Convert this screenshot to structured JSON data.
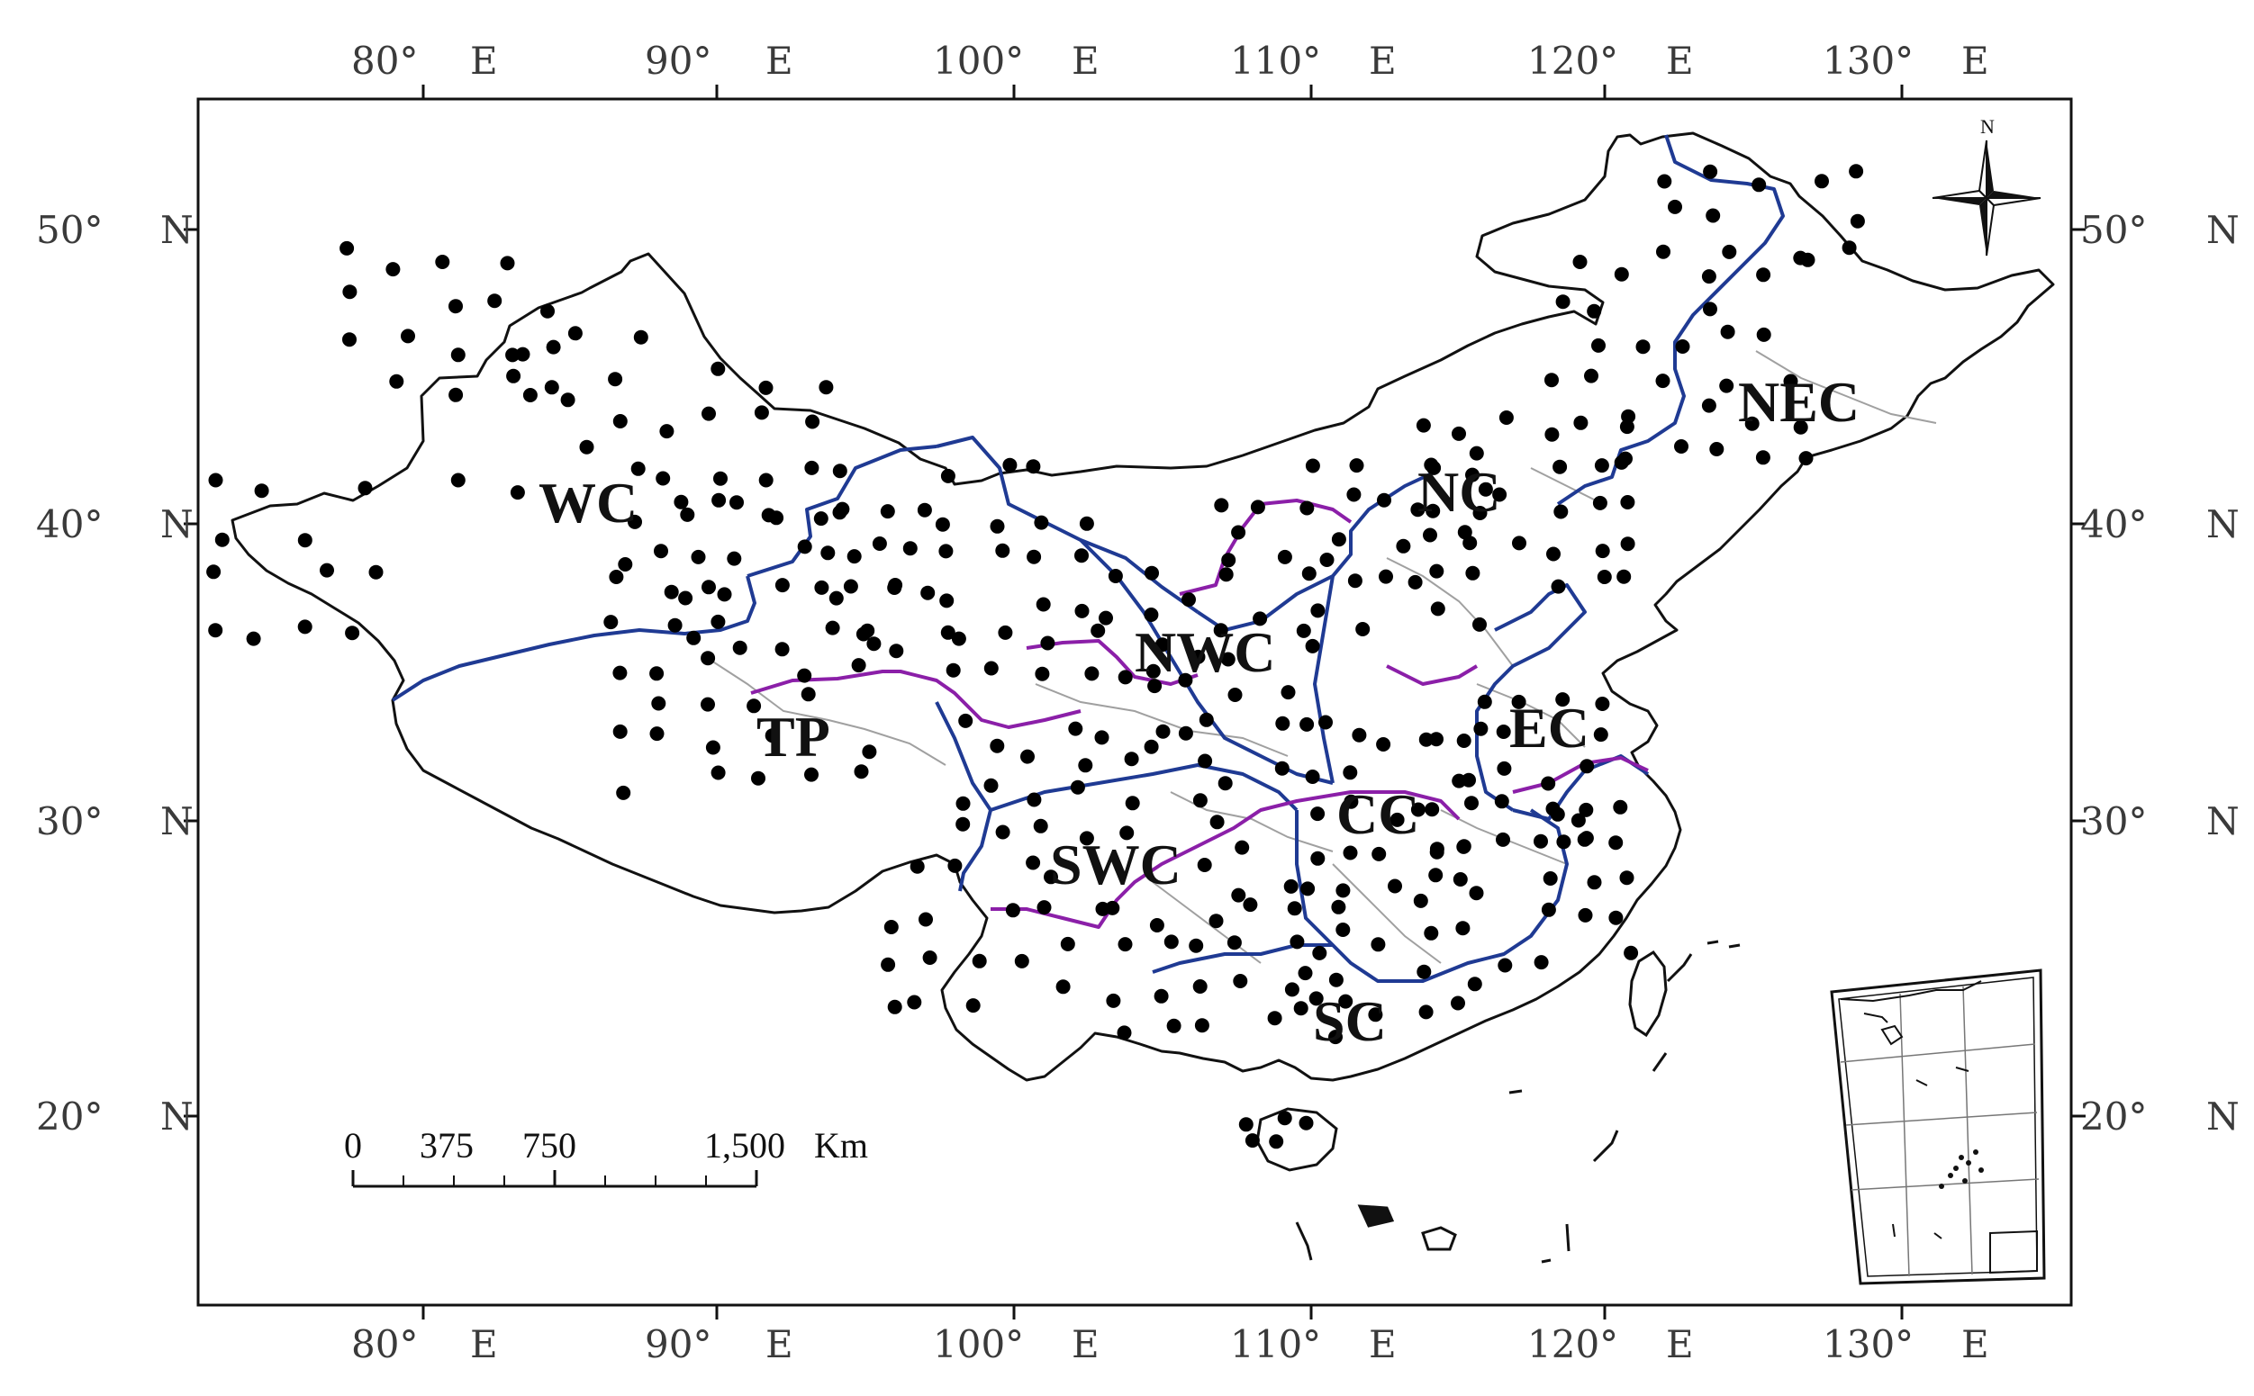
{
  "map": {
    "longitude_labels": [
      {
        "value": "80°",
        "hemisphere": "E"
      },
      {
        "value": "90°",
        "hemisphere": "E"
      },
      {
        "value": "100°",
        "hemisphere": "E"
      },
      {
        "value": "110°",
        "hemisphere": "E"
      },
      {
        "value": "120°",
        "hemisphere": "E"
      },
      {
        "value": "130°",
        "hemisphere": "E"
      }
    ],
    "latitude_labels": [
      {
        "value": "50°",
        "hemisphere": "N"
      },
      {
        "value": "40°",
        "hemisphere": "N"
      },
      {
        "value": "30°",
        "hemisphere": "N"
      },
      {
        "value": "20°",
        "hemisphere": "N"
      }
    ],
    "regions": [
      "WC",
      "NC",
      "NEC",
      "NWC",
      "TP",
      "EC",
      "CC",
      "SWC",
      "SC"
    ],
    "scale_bar": {
      "labels": [
        "0",
        "375",
        "750",
        "1,500"
      ],
      "unit": "Km"
    },
    "compass": {
      "label": "N"
    },
    "colors": {
      "background": "#ffffff",
      "frame": "#111111",
      "boundary_major": "#1f3a93",
      "boundary_minor": "#a0a0a0",
      "boundary_highlight": "#8b1fa8",
      "station": "#000000",
      "outline": "#111111"
    }
  }
}
